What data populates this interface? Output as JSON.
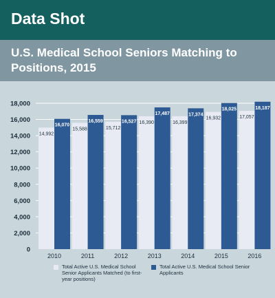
{
  "header": {
    "title": "Data Shot"
  },
  "chart_data": {
    "type": "bar",
    "title": "U.S. Medical School Seniors Matching to Positions, 2015",
    "categories": [
      "2010",
      "2011",
      "2012",
      "2013",
      "2014",
      "2015",
      "2016"
    ],
    "series": [
      {
        "name": "Total Active U.S. Medical School Senior Applicants Matched (to first-year positions)",
        "values": [
          14992,
          15588,
          15712,
          16390,
          16399,
          16932,
          17057
        ],
        "labels": [
          "14,992",
          "15,588",
          "15,712",
          "16,390",
          "16,399",
          "16,932",
          "17,057"
        ],
        "color": "#e8ebf3"
      },
      {
        "name": "Total Active U.S. Medical School Senior Applicants",
        "values": [
          16070,
          16559,
          16527,
          17487,
          17374,
          18025,
          18187
        ],
        "labels": [
          "16,070",
          "16,559",
          "16,527",
          "17,487",
          "17,374",
          "18,025",
          "18,187"
        ],
        "color": "#2e5a93"
      }
    ],
    "yticks": [
      0,
      2000,
      4000,
      6000,
      8000,
      10000,
      12000,
      14000,
      16000,
      18000
    ],
    "ytick_labels": [
      "0",
      "2,000",
      "4,000",
      "6,000",
      "8,000",
      "10,000",
      "12,000",
      "14,000",
      "16,000",
      "18,000"
    ],
    "ylim": [
      0,
      18000
    ],
    "grid": true,
    "legend_position": "bottom",
    "xlabel": "",
    "ylabel": ""
  },
  "colors": {
    "header": "#13605f",
    "title_band": "#8097a1",
    "plot_background": "#c9d6dc",
    "grid": "#ffffff"
  }
}
